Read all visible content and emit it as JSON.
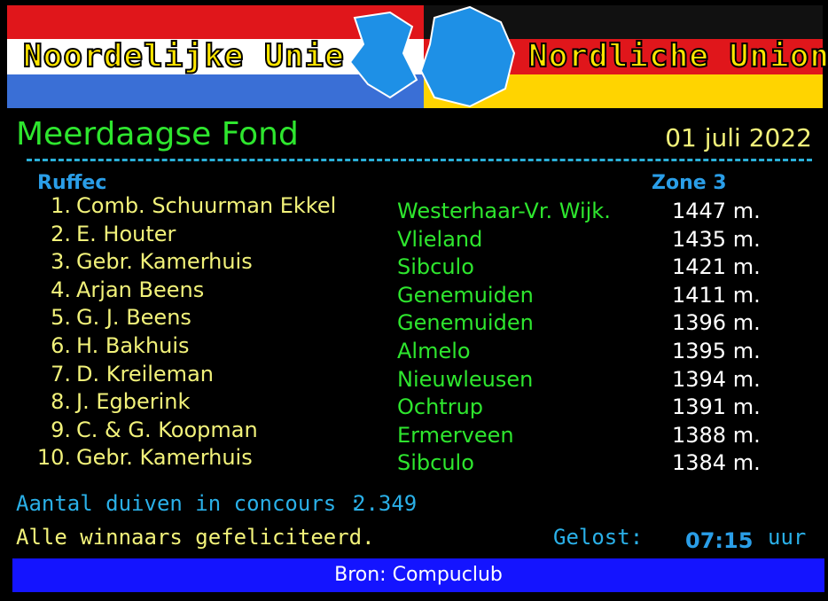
{
  "header": {
    "left_title": "Noordelijke Unie",
    "right_title": "Nordliche Union"
  },
  "title": "Meerdaagse Fond",
  "date": "01 juli 2022",
  "race": "Ruffec",
  "zone": "Zone 3",
  "results": [
    {
      "rank": "1.",
      "name": "Comb. Schuurman Ekkel",
      "place": "Westerhaar-Vr. Wijk.",
      "distance": "1447 m."
    },
    {
      "rank": "2.",
      "name": "E. Houter",
      "place": "Vlieland",
      "distance": "1435 m."
    },
    {
      "rank": "3.",
      "name": "Gebr. Kamerhuis",
      "place": "Sibculo",
      "distance": "1421 m."
    },
    {
      "rank": "4.",
      "name": "Arjan Beens",
      "place": "Genemuiden",
      "distance": "1411 m."
    },
    {
      "rank": "5.",
      "name": "G. J. Beens",
      "place": "Genemuiden",
      "distance": "1396 m."
    },
    {
      "rank": "6.",
      "name": "H. Bakhuis",
      "place": "Almelo",
      "distance": "1395 m."
    },
    {
      "rank": "7.",
      "name": "D. Kreileman",
      "place": "Nieuwleusen",
      "distance": "1394 m."
    },
    {
      "rank": "8.",
      "name": "J. Egberink",
      "place": "Ochtrup",
      "distance": "1391 m."
    },
    {
      "rank": "9.",
      "name": "C. & G. Koopman",
      "place": "Ermerveen",
      "distance": "1388 m."
    },
    {
      "rank": "10.",
      "name": "Gebr. Kamerhuis",
      "place": "Sibculo",
      "distance": "1384 m."
    }
  ],
  "footer": {
    "count_label": "Aantal duiven in concours :",
    "count": "2.349",
    "congrats": "Alle winnaars gefeliciteerd.",
    "released_label": "Gelost:",
    "released_time": "07:15",
    "released_unit": "uur",
    "source": "Bron: Compuclub"
  }
}
